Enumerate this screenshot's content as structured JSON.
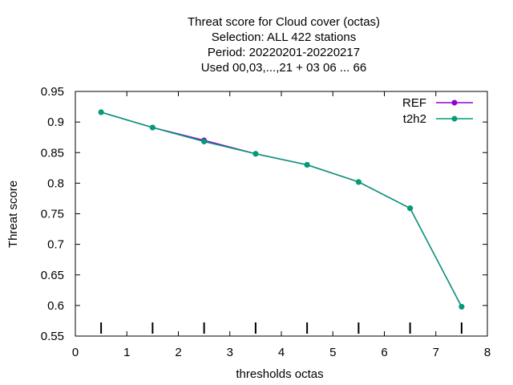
{
  "chart_data": {
    "type": "line",
    "title_lines": [
      "Threat score  for Cloud cover (octas)",
      "Selection: ALL     422 stations",
      "Period: 20220201-20220217",
      "Used  00,03,...,21  + 03 06 ... 66"
    ],
    "xlabel": "thresholds octas",
    "ylabel": "Threat score",
    "xlim": [
      0,
      8
    ],
    "ylim": [
      0.55,
      0.95
    ],
    "xticks": [
      "0",
      "1",
      "2",
      "3",
      "4",
      "5",
      "6",
      "7",
      "8"
    ],
    "yticks": [
      "0.55",
      "0.6",
      "0.65",
      "0.7",
      "0.75",
      "0.8",
      "0.85",
      "0.9",
      "0.95"
    ],
    "x": [
      0.5,
      1.5,
      2.5,
      3.5,
      4.5,
      5.5,
      6.5,
      7.5
    ],
    "legend_position": "top-right",
    "grid": false,
    "series": [
      {
        "name": "REF",
        "color": "#9400d3",
        "values": [
          0.916,
          0.891,
          0.87,
          0.848,
          0.83,
          0.802,
          0.759,
          0.598
        ]
      },
      {
        "name": "t2h2",
        "color": "#009e73",
        "values": [
          0.916,
          0.891,
          0.868,
          0.848,
          0.83,
          0.802,
          0.759,
          0.598
        ]
      }
    ],
    "bottom_markers_x": [
      0.5,
      1.5,
      2.5,
      3.5,
      4.5,
      5.5,
      6.5,
      7.5
    ]
  }
}
